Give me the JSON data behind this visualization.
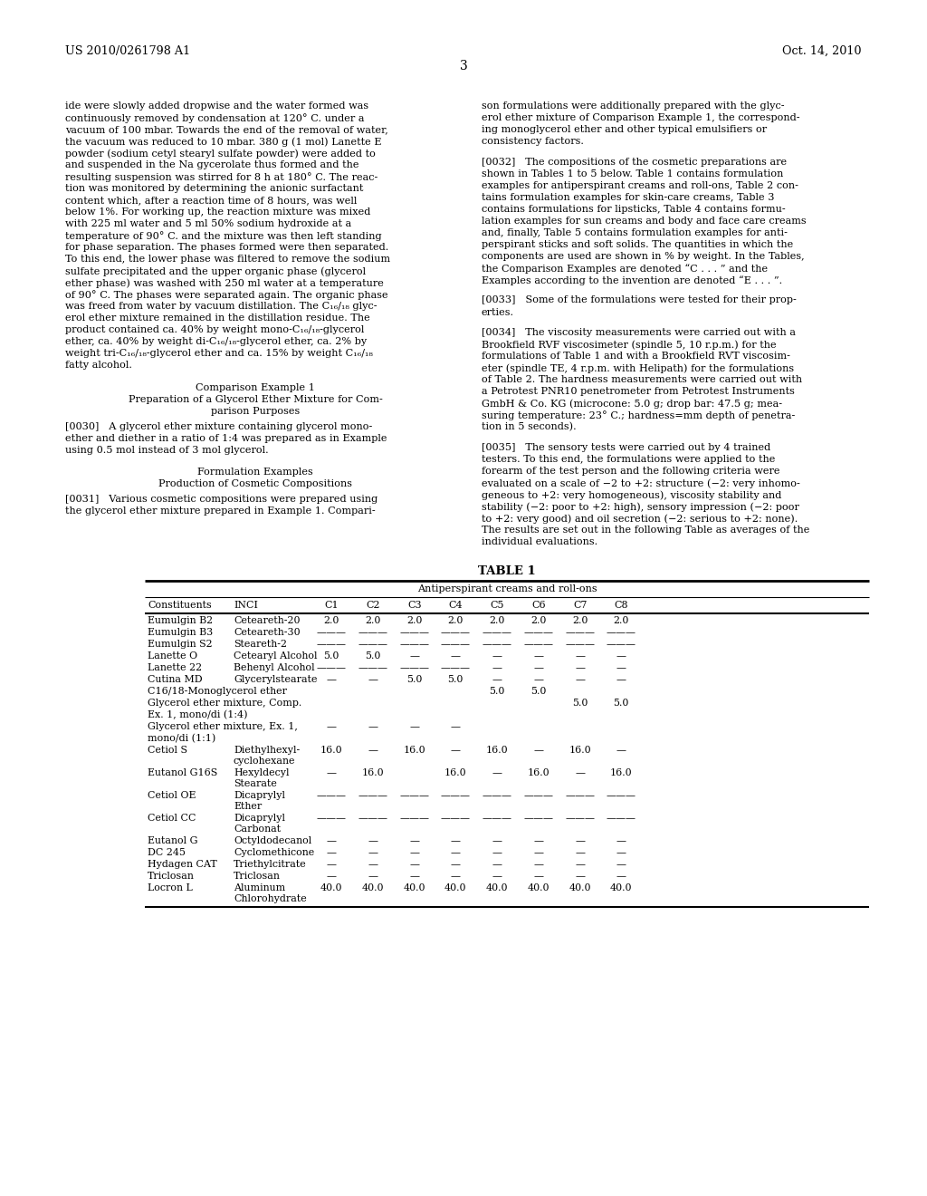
{
  "header_left": "US 2010/0261798 A1",
  "header_right": "Oct. 14, 2010",
  "page_number": "3",
  "bg_color": "#ffffff",
  "left_col_lines": [
    "ide were slowly added dropwise and the water formed was",
    "continuously removed by condensation at 120° C. under a",
    "vacuum of 100 mbar. Towards the end of the removal of water,",
    "the vacuum was reduced to 10 mbar. 380 g (1 mol) Lanette E",
    "powder (sodium cetyl stearyl sulfate powder) were added to",
    "and suspended in the Na gycerolate thus formed and the",
    "resulting suspension was stirred for 8 h at 180° C. The reac-",
    "tion was monitored by determining the anionic surfactant",
    "content which, after a reaction time of 8 hours, was well",
    "below 1%. For working up, the reaction mixture was mixed",
    "with 225 ml water and 5 ml 50% sodium hydroxide at a",
    "temperature of 90° C. and the mixture was then left standing",
    "for phase separation. The phases formed were then separated.",
    "To this end, the lower phase was filtered to remove the sodium",
    "sulfate precipitated and the upper organic phase (glycerol",
    "ether phase) was washed with 250 ml water at a temperature",
    "of 90° C. The phases were separated again. The organic phase",
    "was freed from water by vacuum distillation. The C₁₆/₁₈ glyc-",
    "erol ether mixture remained in the distillation residue. The",
    "product contained ca. 40% by weight mono-C₁₆/₁₈-glycerol",
    "ether, ca. 40% by weight di-C₁₆/₁₈-glycerol ether, ca. 2% by",
    "weight tri-C₁₆/₁₈-glycerol ether and ca. 15% by weight C₁₆/₁₈",
    "fatty alcohol."
  ],
  "comp_ex_title": "Comparison Example 1",
  "comp_ex_sub1": "Preparation of a Glycerol Ether Mixture for Com-",
  "comp_ex_sub2": "parison Purposes",
  "para_0030_lines": [
    "[0030]   A glycerol ether mixture containing glycerol mono-",
    "ether and diether in a ratio of 1:4 was prepared as in Example",
    "using 0.5 mol instead of 3 mol glycerol."
  ],
  "form_title": "Formulation Examples",
  "form_sub": "Production of Cosmetic Compositions",
  "para_0031_lines": [
    "[0031]   Various cosmetic compositions were prepared using",
    "the glycerol ether mixture prepared in Example 1. Compari-"
  ],
  "right_col_lines": [
    "son formulations were additionally prepared with the glyc-",
    "erol ether mixture of Comparison Example 1, the correspond-",
    "ing monoglycerol ether and other typical emulsifiers or",
    "consistency factors.",
    "",
    "[0032]   The compositions of the cosmetic preparations are",
    "shown in Tables 1 to 5 below. Table 1 contains formulation",
    "examples for antiperspirant creams and roll-ons, Table 2 con-",
    "tains formulation examples for skin-care creams, Table 3",
    "contains formulations for lipsticks, Table 4 contains formu-",
    "lation examples for sun creams and body and face care creams",
    "and, finally, Table 5 contains formulation examples for anti-",
    "perspirant sticks and soft solids. The quantities in which the",
    "components are used are shown in % by weight. In the Tables,",
    "the Comparison Examples are denoted “C . . . ” and the",
    "Examples according to the invention are denoted “E . . . ”.",
    "",
    "[0033]   Some of the formulations were tested for their prop-",
    "erties.",
    "",
    "[0034]   The viscosity measurements were carried out with a",
    "Brookfield RVF viscosimeter (spindle 5, 10 r.p.m.) for the",
    "formulations of Table 1 and with a Brookfield RVT viscosim-",
    "eter (spindle TE, 4 r.p.m. with Helipath) for the formulations",
    "of Table 2. The hardness measurements were carried out with",
    "a Petrotest PNR10 penetrometer from Petrotest Instruments",
    "GmbH & Co. KG (microcone: 5.0 g; drop bar: 47.5 g; mea-",
    "suring temperature: 23° C.; hardness=mm depth of penetra-",
    "tion in 5 seconds).",
    "",
    "[0035]   The sensory tests were carried out by 4 trained",
    "testers. To this end, the formulations were applied to the",
    "forearm of the test person and the following criteria were",
    "evaluated on a scale of −2 to +2: structure (−2: very inhomo-",
    "geneous to +2: very homogeneous), viscosity stability and",
    "stability (−2: poor to +2: high), sensory impression (−2: poor",
    "to +2: very good) and oil secretion (−2: serious to +2: none).",
    "The results are set out in the following Table as averages of the",
    "individual evaluations."
  ],
  "table_title": "TABLE 1",
  "table_subtitle": "Antiperspirant creams and roll-ons",
  "table_col_headers": [
    "Constituents",
    "INCI",
    "C1",
    "C2",
    "C3",
    "C4",
    "C5",
    "C6",
    "C7",
    "C8"
  ],
  "table_rows": [
    {
      "col0": "Eumulgin B2",
      "col1": "Ceteareth-20",
      "vals": [
        "2.0",
        "2.0",
        "2.0",
        "2.0",
        "2.0",
        "2.0",
        "2.0",
        "2.0"
      ],
      "h2": ""
    },
    {
      "col0": "Eumulgin B3",
      "col1": "Ceteareth-30",
      "vals": [
        "———",
        "———",
        "———",
        "———",
        "———",
        "———",
        "———",
        "———"
      ],
      "h2": ""
    },
    {
      "col0": "Eumulgin S2",
      "col1": "Steareth-2",
      "vals": [
        "———",
        "———",
        "———",
        "———",
        "———",
        "———",
        "———",
        "———"
      ],
      "h2": ""
    },
    {
      "col0": "Lanette O",
      "col1": "Cetearyl Alcohol",
      "vals": [
        "5.0",
        "5.0",
        "—",
        "—",
        "—",
        "—",
        "—",
        "—"
      ],
      "h2": ""
    },
    {
      "col0": "Lanette 22",
      "col1": "Behenyl Alcohol",
      "vals": [
        "———",
        "———",
        "———",
        "———",
        "—",
        "—",
        "—",
        "—"
      ],
      "h2": ""
    },
    {
      "col0": "Cutina MD",
      "col1": "Glycerylstearate",
      "vals": [
        "—",
        "—",
        "5.0",
        "5.0",
        "—",
        "—",
        "—",
        "—"
      ],
      "h2": ""
    },
    {
      "col0": "C16/18-Monoglycerol ether",
      "col1": "",
      "vals": [
        "",
        "",
        "",
        "",
        "5.0",
        "5.0",
        "",
        ""
      ],
      "h2": ""
    },
    {
      "col0": "Glycerol ether mixture, Comp.",
      "col1": "",
      "vals": [
        "",
        "",
        "",
        "",
        "",
        "",
        "5.0",
        "5.0"
      ],
      "h2": ""
    },
    {
      "col0": "Ex. 1, mono/di (1:4)",
      "col1": "",
      "vals": [
        "",
        "",
        "",
        "",
        "",
        "",
        "",
        ""
      ],
      "h2": ""
    },
    {
      "col0": "Glycerol ether mixture, Ex. 1,",
      "col1": "",
      "vals": [
        "—",
        "—",
        "—",
        "—",
        "",
        "",
        "",
        ""
      ],
      "h2": ""
    },
    {
      "col0": "mono/di (1:1)",
      "col1": "",
      "vals": [
        "",
        "",
        "",
        "",
        "",
        "",
        "",
        ""
      ],
      "h2": ""
    },
    {
      "col0": "Cetiol S",
      "col1": "Diethylhexyl-",
      "vals": [
        "16.0",
        "—",
        "16.0",
        "—",
        "16.0",
        "—",
        "16.0",
        "—"
      ],
      "h2": "cyclohexane"
    },
    {
      "col0": "Eutanol G16S",
      "col1": "Hexyldecyl",
      "vals": [
        "—",
        "16.0",
        "",
        "16.0",
        "—",
        "16.0",
        "—",
        "16.0"
      ],
      "h2": "Stearate"
    },
    {
      "col0": "Cetiol OE",
      "col1": "Dicaprylyl",
      "vals": [
        "———",
        "———",
        "———",
        "———",
        "———",
        "———",
        "———",
        "———"
      ],
      "h2": "Ether"
    },
    {
      "col0": "Cetiol CC",
      "col1": "Dicaprylyl",
      "vals": [
        "———",
        "———",
        "———",
        "———",
        "———",
        "———",
        "———",
        "———"
      ],
      "h2": "Carbonat"
    },
    {
      "col0": "Eutanol G",
      "col1": "Octyldodecanol",
      "vals": [
        "—",
        "—",
        "—",
        "—",
        "—",
        "—",
        "—",
        "—"
      ],
      "h2": ""
    },
    {
      "col0": "DC 245",
      "col1": "Cyclomethicone",
      "vals": [
        "—",
        "—",
        "—",
        "—",
        "—",
        "—",
        "—",
        "—"
      ],
      "h2": ""
    },
    {
      "col0": "Hydagen CAT",
      "col1": "Triethylcitrate",
      "vals": [
        "—",
        "—",
        "—",
        "—",
        "—",
        "—",
        "—",
        "—"
      ],
      "h2": ""
    },
    {
      "col0": "Triclosan",
      "col1": "Triclosan",
      "vals": [
        "—",
        "—",
        "—",
        "—",
        "—",
        "—",
        "—",
        "—"
      ],
      "h2": ""
    },
    {
      "col0": "Locron L",
      "col1": "Aluminum",
      "vals": [
        "40.0",
        "40.0",
        "40.0",
        "40.0",
        "40.0",
        "40.0",
        "40.0",
        "40.0"
      ],
      "h2": "Chlorohydrate"
    }
  ]
}
